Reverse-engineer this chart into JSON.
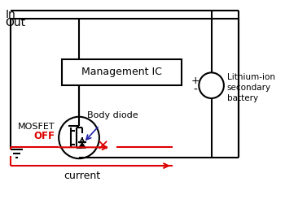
{
  "bg_color": "#ffffff",
  "line_color": "#000000",
  "red_color": "#dd0000",
  "blue_color": "#2222aa",
  "in_label": "In",
  "out_label": "Out",
  "mosfet_label": "MOSFET",
  "off_label": "OFF",
  "body_diode_label": "Body diode",
  "management_ic_label": "Management IC",
  "lithium_label": [
    "Lithium-ion",
    "secondary",
    "battery"
  ],
  "current_label": "current",
  "fig_width": 3.5,
  "fig_height": 2.45
}
